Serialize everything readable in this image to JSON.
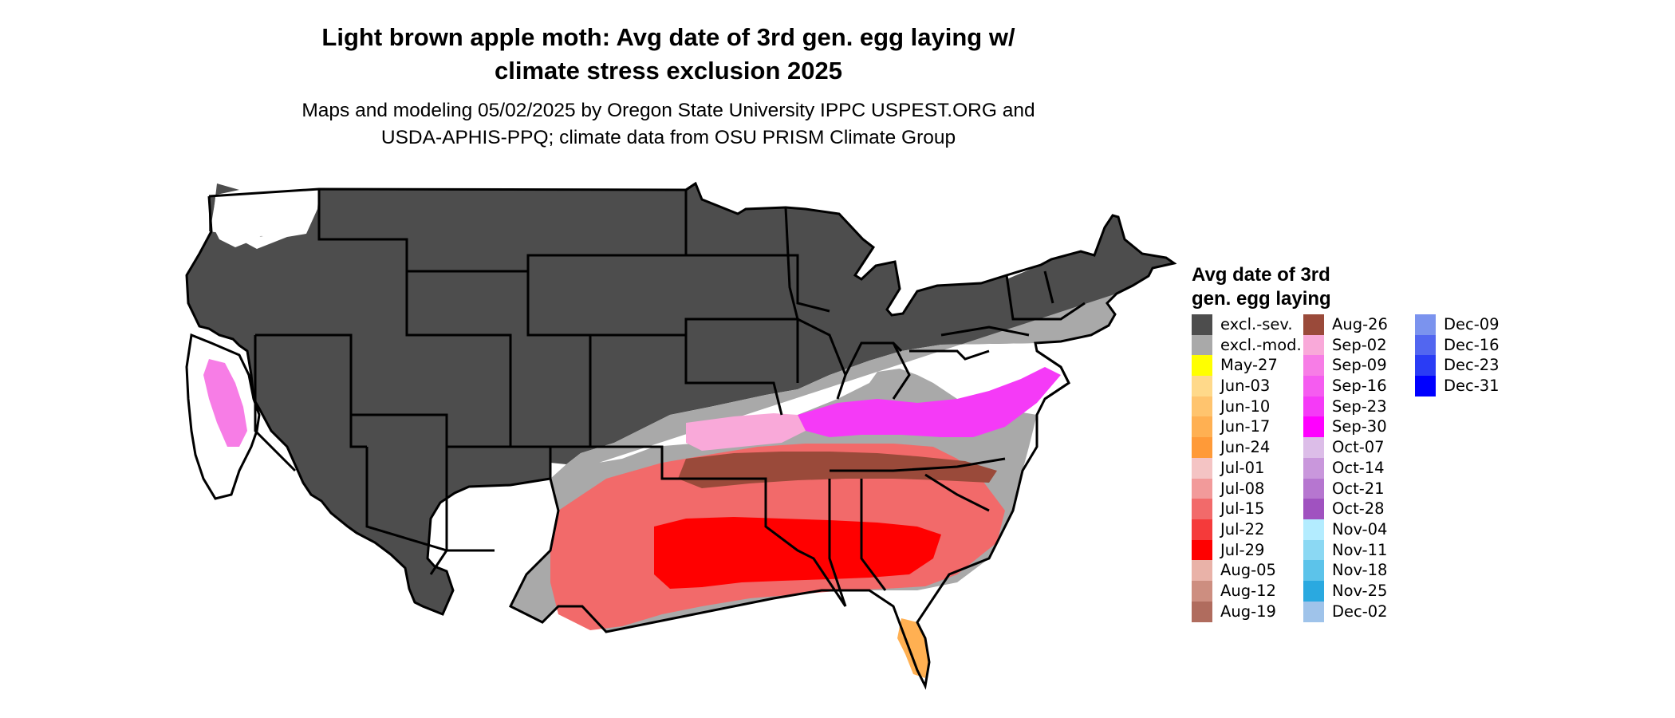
{
  "title": {
    "line1": "Light brown apple moth: Avg date of 3rd gen. egg laying w/",
    "line2": "climate stress exclusion 2025"
  },
  "subtitle": {
    "line1": "Maps and modeling 05/02/2025 by Oregon State University IPPC USPEST.ORG and",
    "line2": "USDA-APHIS-PPQ; climate data from OSU PRISM Climate Group"
  },
  "legend": {
    "title_line1": "Avg date of 3rd",
    "title_line2": "gen. egg laying",
    "items": [
      {
        "label": "excl.-sev.",
        "color": "#4d4d4d"
      },
      {
        "label": "excl.-mod.",
        "color": "#a9a9a9"
      },
      {
        "label": "May-27",
        "color": "#ffff00"
      },
      {
        "label": "Jun-03",
        "color": "#ffd98a"
      },
      {
        "label": "Jun-10",
        "color": "#ffc46e"
      },
      {
        "label": "Jun-17",
        "color": "#ffb052"
      },
      {
        "label": "Jun-24",
        "color": "#ff9a38"
      },
      {
        "label": "Jul-01",
        "color": "#f4c4c4"
      },
      {
        "label": "Jul-08",
        "color": "#f29a9a"
      },
      {
        "label": "Jul-15",
        "color": "#f26a6a"
      },
      {
        "label": "Jul-22",
        "color": "#f53a3a"
      },
      {
        "label": "Jul-29",
        "color": "#ff0000"
      },
      {
        "label": "Aug-05",
        "color": "#e9b2a8"
      },
      {
        "label": "Aug-12",
        "color": "#cd8e80"
      },
      {
        "label": "Aug-19",
        "color": "#b06c5e"
      },
      {
        "label": "Aug-26",
        "color": "#9a4a3a"
      },
      {
        "label": "Sep-02",
        "color": "#f9a9d9"
      },
      {
        "label": "Sep-09",
        "color": "#f77de6"
      },
      {
        "label": "Sep-16",
        "color": "#f55cf0"
      },
      {
        "label": "Sep-23",
        "color": "#f53af7"
      },
      {
        "label": "Sep-30",
        "color": "#ff00ff"
      },
      {
        "label": "Oct-07",
        "color": "#dcbde8"
      },
      {
        "label": "Oct-14",
        "color": "#c997dc"
      },
      {
        "label": "Oct-21",
        "color": "#b676d0"
      },
      {
        "label": "Oct-28",
        "color": "#a052c0"
      },
      {
        "label": "Nov-04",
        "color": "#b3ecff"
      },
      {
        "label": "Nov-11",
        "color": "#8bd8f3"
      },
      {
        "label": "Nov-18",
        "color": "#5cc3ea"
      },
      {
        "label": "Nov-25",
        "color": "#2aa9e0"
      },
      {
        "label": "Dec-02",
        "color": "#9fc3ea"
      },
      {
        "label": "Dec-09",
        "color": "#7b93ee"
      },
      {
        "label": "Dec-16",
        "color": "#5266f0"
      },
      {
        "label": "Dec-23",
        "color": "#2a3cf5"
      },
      {
        "label": "Dec-31",
        "color": "#0000ff"
      }
    ]
  },
  "map": {
    "colors": {
      "excluded_severe": "#4d4d4d",
      "excluded_moderate": "#a9a9a9",
      "no_data": "#ffffff",
      "state_border": "#000000"
    }
  }
}
